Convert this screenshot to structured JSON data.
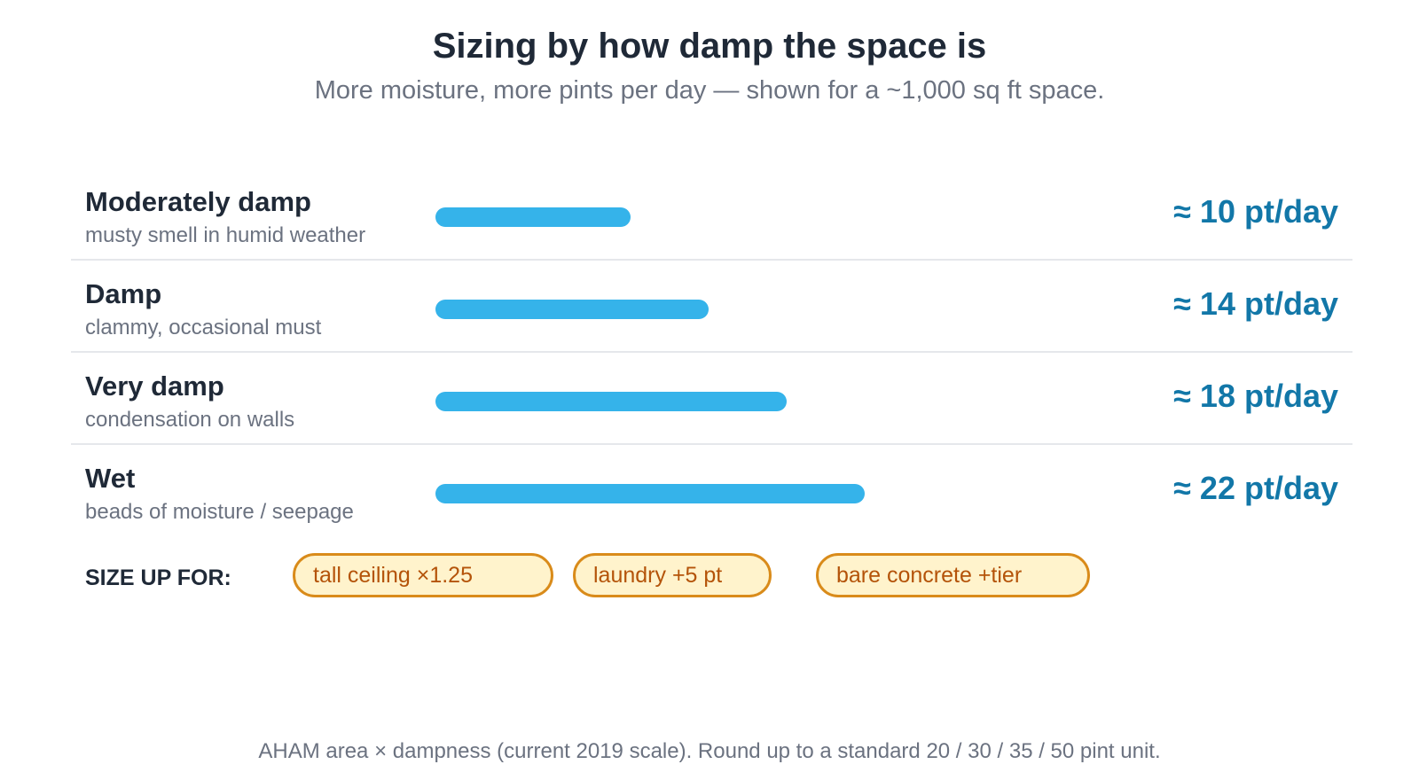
{
  "title": "Sizing by how damp the space is",
  "subtitle": "More moisture, more pints per day — shown for a ~1,000 sq ft space.",
  "size_up": {
    "label": "SIZE UP FOR:",
    "chips": [
      "tall ceiling ×1.25",
      "laundry +5 pt",
      "bare concrete +tier"
    ]
  },
  "footnote": "AHAM area × dampness (current 2019 scale). Round up to a standard 20 / 30 / 35 / 50 pint unit.",
  "colors": {
    "bar": "#35b3ea",
    "value": "#1277a8",
    "chip_border": "#d98b1a",
    "chip_fill": "#fff3cc",
    "chip_text": "#b45309"
  },
  "chart_data": {
    "type": "bar",
    "orientation": "horizontal",
    "unit": "pt/day",
    "categories": [
      "Moderately damp",
      "Damp",
      "Very damp",
      "Wet"
    ],
    "descriptions": [
      "musty smell in humid weather",
      "clammy, occasional must",
      "condensation on walls",
      "beads of moisture / seepage"
    ],
    "values": [
      10,
      14,
      18,
      22
    ],
    "value_labels": [
      "≈ 10 pt/day",
      "≈ 14 pt/day",
      "≈ 18 pt/day",
      "≈ 22 pt/day"
    ],
    "xlim": [
      0,
      24
    ],
    "grid": false,
    "legend": "none"
  }
}
